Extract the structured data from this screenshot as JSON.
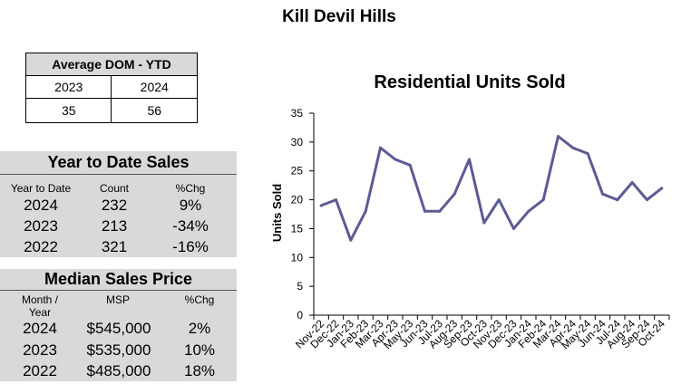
{
  "page_title": "Kill Devil Hills",
  "dom_table": {
    "header": "Average DOM - YTD",
    "years": [
      "2023",
      "2024"
    ],
    "values": [
      "35",
      "56"
    ]
  },
  "ytd_sales": {
    "title": "Year to Date Sales",
    "columns": [
      "Year to Date",
      "Count",
      "%Chg"
    ],
    "rows": [
      {
        "year": "2024",
        "count": "232",
        "chg": "9%"
      },
      {
        "year": "2023",
        "count": "213",
        "chg": "-34%"
      },
      {
        "year": "2022",
        "count": "321",
        "chg": "-16%"
      }
    ]
  },
  "median_price": {
    "title": "Median Sales Price",
    "columns": [
      "Month /",
      "Year",
      "MSP",
      "%Chg"
    ],
    "rows": [
      {
        "year": "2024",
        "msp": "$545,000",
        "chg": "2%"
      },
      {
        "year": "2023",
        "msp": "$535,000",
        "chg": "10%"
      },
      {
        "year": "2022",
        "msp": "$485,000",
        "chg": "18%"
      }
    ]
  },
  "chart_data": {
    "type": "line",
    "title": "Residential Units Sold",
    "xlabel": "",
    "ylabel": "Units Sold",
    "ylim": [
      0,
      35
    ],
    "yticks": [
      0,
      5,
      10,
      15,
      20,
      25,
      30,
      35
    ],
    "grid": false,
    "line_color": "#5b5b95",
    "categories": [
      "Nov-22",
      "Dec-22",
      "Jan-23",
      "Feb-23",
      "Mar-23",
      "Apr-23",
      "May-23",
      "Jun-23",
      "Jul-23",
      "Aug-23",
      "Sep-23",
      "Oct-23",
      "Nov-23",
      "Dec-23",
      "Jan-24",
      "Feb-24",
      "Mar-24",
      "Apr-24",
      "May-24",
      "Jun-24",
      "Jul-24",
      "Aug-24",
      "Sep-24",
      "Oct-24"
    ],
    "series": [
      {
        "values": [
          19,
          20,
          13,
          18,
          29,
          27,
          26,
          18,
          18,
          21,
          27,
          16,
          20,
          15,
          18,
          20,
          31,
          29,
          28,
          21,
          20,
          23,
          20,
          22
        ]
      }
    ]
  }
}
